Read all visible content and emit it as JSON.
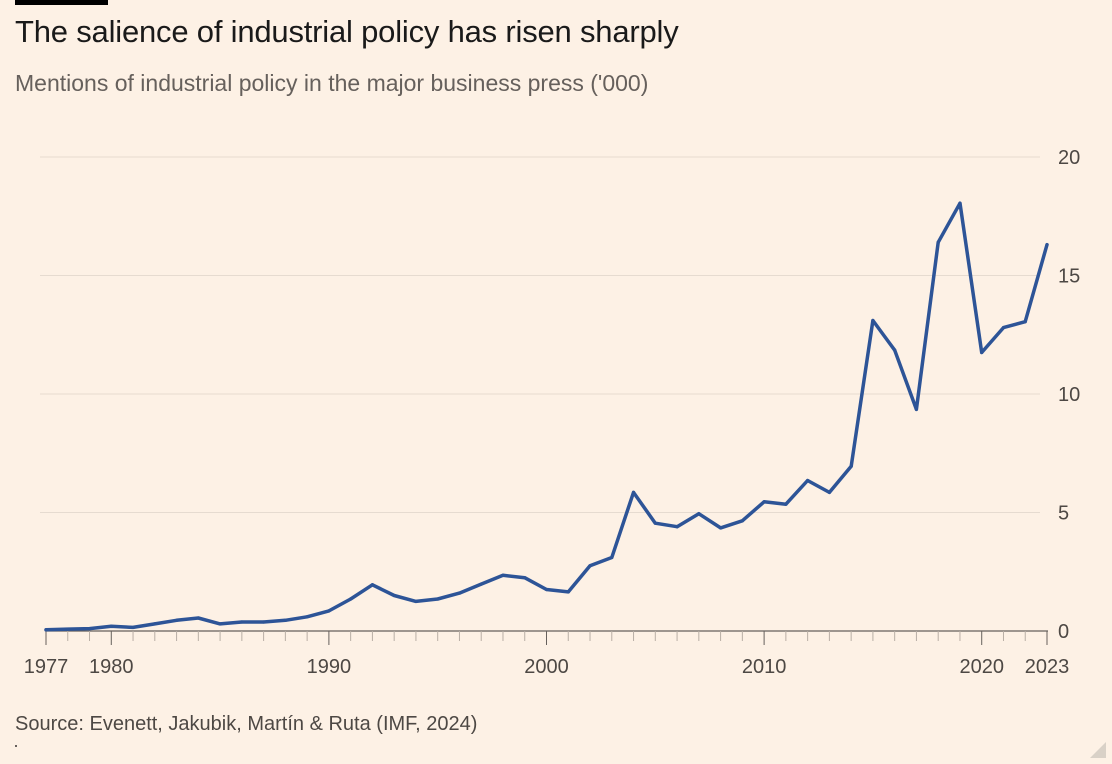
{
  "header": {
    "title": "The salience of industrial policy has risen sharply",
    "subtitle": "Mentions of industrial policy in the major business press ('000)"
  },
  "footer": {
    "source": "Source: Evenett, Jakubik, Martín & Ruta (IMF, 2024)"
  },
  "colors": {
    "background": "#fdf1e5",
    "line": "#2d5497",
    "gridline": "#e6dbd0",
    "axis": "#66605c",
    "tick_text": "#4d4844"
  },
  "chart_data": {
    "type": "line",
    "title": "The salience of industrial policy has risen sharply",
    "subtitle": "Mentions of industrial policy in the major business press ('000)",
    "xlabel": "",
    "ylabel": "",
    "xlim": [
      1977,
      2023
    ],
    "ylim": [
      0,
      20
    ],
    "x_tick_labels": [
      "1977",
      "1980",
      "1990",
      "2000",
      "2010",
      "2020",
      "2023"
    ],
    "x_tick_values": [
      1977,
      1980,
      1990,
      2000,
      2010,
      2020,
      2023
    ],
    "y_tick_labels": [
      "0",
      "5",
      "10",
      "15",
      "20"
    ],
    "y_tick_values": [
      0,
      5,
      10,
      15,
      20
    ],
    "y_axis_side": "right",
    "grid": true,
    "legend": "none",
    "x": [
      1977,
      1978,
      1979,
      1980,
      1981,
      1982,
      1983,
      1984,
      1985,
      1986,
      1987,
      1988,
      1989,
      1990,
      1991,
      1992,
      1993,
      1994,
      1995,
      1996,
      1997,
      1998,
      1999,
      2000,
      2001,
      2002,
      2003,
      2004,
      2005,
      2006,
      2007,
      2008,
      2009,
      2010,
      2011,
      2012,
      2013,
      2014,
      2015,
      2016,
      2017,
      2018,
      2019,
      2020,
      2021,
      2022,
      2023
    ],
    "series": [
      {
        "values": [
          0.05,
          0.08,
          0.1,
          0.2,
          0.15,
          0.3,
          0.45,
          0.55,
          0.3,
          0.38,
          0.38,
          0.45,
          0.6,
          0.85,
          1.35,
          1.95,
          1.5,
          1.25,
          1.35,
          1.6,
          1.98,
          2.35,
          2.25,
          1.75,
          1.65,
          2.75,
          3.1,
          5.85,
          4.55,
          4.4,
          4.95,
          4.35,
          4.65,
          5.45,
          5.35,
          6.35,
          5.85,
          6.95,
          13.1,
          11.85,
          9.35,
          16.4,
          18.05,
          11.75,
          12.8,
          13.05,
          16.3
        ]
      }
    ]
  }
}
